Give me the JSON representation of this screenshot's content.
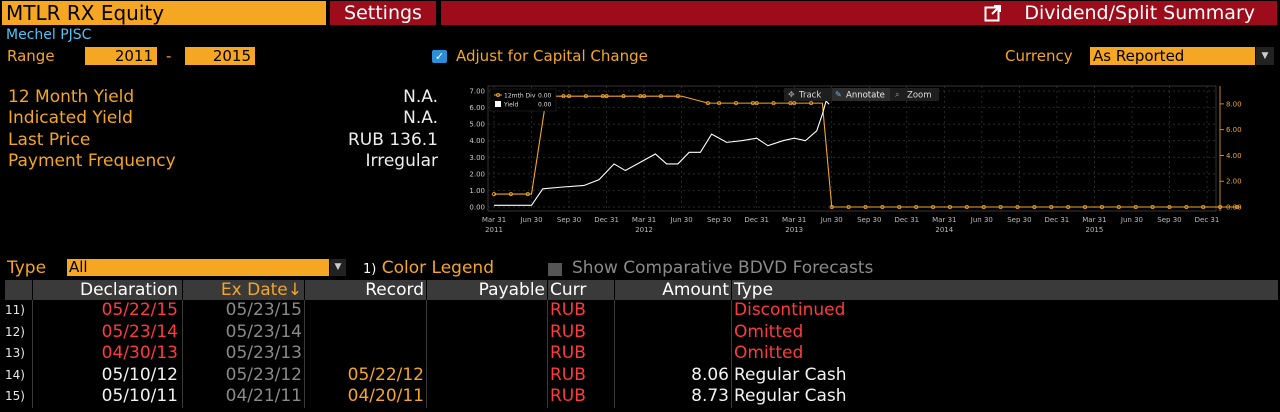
{
  "header": {
    "ticker": "MTLR RX Equity",
    "settings_label": "Settings",
    "function_title": "Dividend/Split Summary",
    "company": "Mechel PJSC"
  },
  "controls": {
    "range_label": "Range",
    "range_from": "2011",
    "range_dash": "-",
    "range_to": "2015",
    "adjust_label": "Adjust for Capital Change",
    "adjust_checked": true,
    "currency_label": "Currency",
    "currency_value": "As Reported"
  },
  "stats": [
    {
      "label": "12 Month Yield",
      "value": "N.A."
    },
    {
      "label": "Indicated Yield",
      "value": "N.A."
    },
    {
      "label": "Last Price",
      "value": "RUB 136.1"
    },
    {
      "label": "Payment Frequency",
      "value": "Irregular"
    }
  ],
  "chart_toolbar": {
    "track": "Track",
    "annotate": "Annotate",
    "zoom": "Zoom"
  },
  "chart_data": {
    "type": "line",
    "legend": [
      {
        "name": "12mth Div",
        "value": "0.00",
        "color": "#f5a623"
      },
      {
        "name": "Yield",
        "value": "0.00",
        "color": "#ffffff"
      }
    ],
    "left_axis": {
      "ticks": [
        "0.00",
        "1.00",
        "2.00",
        "3.00",
        "4.00",
        "5.00",
        "6.00",
        "7.00"
      ],
      "ylim": [
        0,
        7
      ]
    },
    "right_axis": {
      "ticks": [
        "0.00",
        "2.00",
        "4.00",
        "6.00",
        "8.00"
      ],
      "ylim": [
        0,
        9
      ]
    },
    "x_ticks": [
      "Mar 31",
      "Jun 30",
      "Sep 30",
      "Dec 31",
      "Mar 31",
      "Jun 30",
      "Sep 30",
      "Dec 31",
      "Mar 31",
      "Jun 30",
      "Sep 30",
      "Dec 31",
      "Mar 31",
      "Jun 30",
      "Sep 30",
      "Dec 31",
      "Mar 31",
      "Jun 30",
      "Sep 30",
      "Dec 31"
    ],
    "year_labels": [
      "2011",
      "2012",
      "2013",
      "2014",
      "2015"
    ],
    "series": [
      {
        "name": "12mth Div",
        "axis": "right",
        "color": "#f5a623",
        "markers": true,
        "points": [
          [
            0,
            1.0
          ],
          [
            1,
            1.0
          ],
          [
            1.4,
            8.6
          ],
          [
            2,
            8.6
          ],
          [
            3,
            8.6
          ],
          [
            4,
            8.6
          ],
          [
            5,
            8.6
          ],
          [
            5.7,
            8.06
          ],
          [
            6,
            8.06
          ],
          [
            7,
            8.06
          ],
          [
            8,
            8.06
          ],
          [
            8.75,
            8.06
          ],
          [
            9.0,
            0.0
          ],
          [
            19.9,
            0.0
          ]
        ]
      },
      {
        "name": "Yield",
        "axis": "left",
        "color": "#ffffff",
        "markers": false,
        "points": [
          [
            0,
            0.1
          ],
          [
            1,
            0.1
          ],
          [
            1.3,
            1.1
          ],
          [
            1.8,
            1.2
          ],
          [
            2.4,
            1.3
          ],
          [
            2.8,
            1.65
          ],
          [
            3.2,
            2.6
          ],
          [
            3.5,
            2.2
          ],
          [
            3.9,
            2.7
          ],
          [
            4.3,
            3.2
          ],
          [
            4.6,
            2.6
          ],
          [
            4.9,
            2.6
          ],
          [
            5.2,
            3.3
          ],
          [
            5.5,
            3.3
          ],
          [
            5.8,
            4.4
          ],
          [
            6.2,
            3.9
          ],
          [
            6.6,
            4.0
          ],
          [
            7.0,
            4.15
          ],
          [
            7.3,
            3.7
          ],
          [
            7.7,
            4.0
          ],
          [
            8.0,
            4.15
          ],
          [
            8.3,
            4.0
          ],
          [
            8.6,
            4.6
          ],
          [
            8.75,
            5.6
          ],
          [
            8.85,
            6.4
          ],
          [
            8.93,
            6.2
          ]
        ]
      }
    ]
  },
  "type_filter": {
    "label": "Type",
    "value": "All",
    "legend_num": "1)",
    "legend_label": "Color Legend",
    "show_label": "Show Comparative BDVD Forecasts"
  },
  "table": {
    "headers": [
      "",
      "Declaration",
      "Ex Date↓",
      "Record",
      "Payable",
      "Curr",
      "Amount",
      "Type"
    ],
    "rows": [
      {
        "num": "11)",
        "declaration": "05/22/15",
        "ex_date": "05/23/15",
        "record": "",
        "payable": "",
        "curr": "RUB",
        "amount": "",
        "type": "Discontinued",
        "color": "red"
      },
      {
        "num": "12)",
        "declaration": "05/23/14",
        "ex_date": "05/23/14",
        "record": "",
        "payable": "",
        "curr": "RUB",
        "amount": "",
        "type": "Omitted",
        "color": "red"
      },
      {
        "num": "13)",
        "declaration": "04/30/13",
        "ex_date": "05/23/13",
        "record": "",
        "payable": "",
        "curr": "RUB",
        "amount": "",
        "type": "Omitted",
        "color": "red"
      },
      {
        "num": "14)",
        "declaration": "05/10/12",
        "ex_date": "05/23/12",
        "record": "05/22/12",
        "payable": "",
        "curr": "RUB",
        "amount": "8.06",
        "type": "Regular Cash",
        "color": "white"
      },
      {
        "num": "15)",
        "declaration": "05/10/11",
        "ex_date": "04/21/11",
        "record": "04/20/11",
        "payable": "",
        "curr": "RUB",
        "amount": "8.73",
        "type": "Regular Cash",
        "color": "white"
      }
    ]
  }
}
